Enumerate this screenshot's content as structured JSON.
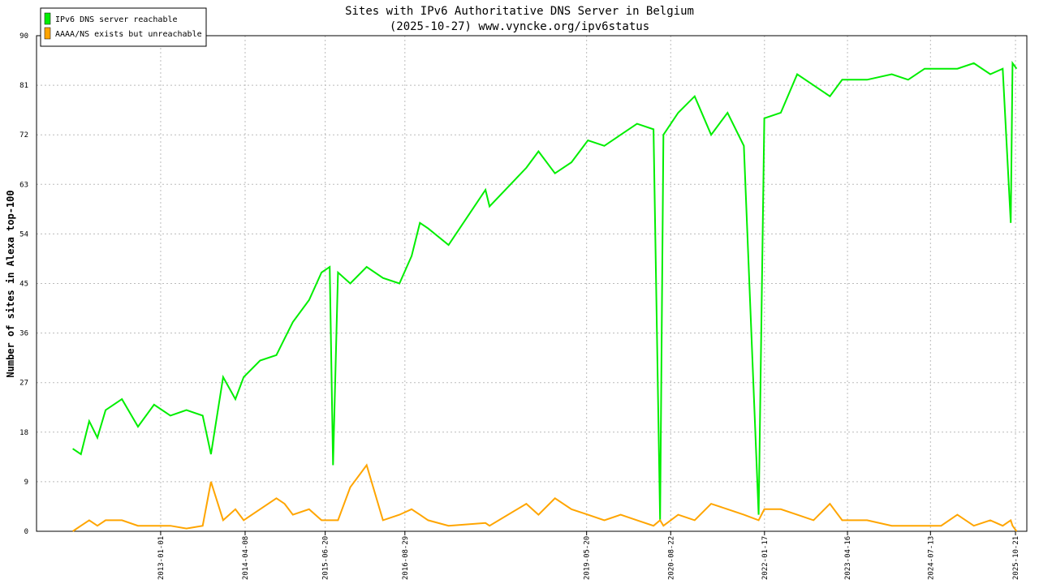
{
  "chart_data": {
    "type": "line",
    "title": "Sites with IPv6 Authoritative DNS Server in Belgium",
    "subtitle": "(2025-10-27) www.vyncke.org/ipv6status",
    "y_label": "Number of sites in Alexa top-100",
    "x": [
      "2011-09-08",
      "2011-10-23",
      "2011-12-07",
      "2012-01-21",
      "2012-03-06",
      "2012-06-03",
      "2012-08-30",
      "2012-11-26",
      "2013-02-23",
      "2013-05-22",
      "2013-08-19",
      "2013-10-03",
      "2013-12-09",
      "2014-02-14",
      "2014-03-31",
      "2014-06-29",
      "2014-09-26",
      "2014-11-10",
      "2014-12-25",
      "2015-03-24",
      "2015-05-31",
      "2015-07-15",
      "2015-08-02",
      "2015-08-29",
      "2015-11-04",
      "2016-02-02",
      "2016-05-01",
      "2016-07-30",
      "2016-10-05",
      "2016-11-19",
      "2017-01-03",
      "2017-04-25",
      "2017-11-13",
      "2017-12-05",
      "2018-06-24",
      "2018-08-30",
      "2018-11-28",
      "2019-02-26",
      "2019-05-27",
      "2019-08-25",
      "2019-11-22",
      "2020-02-20",
      "2020-05-20",
      "2020-06-25",
      "2020-07-13",
      "2020-10-02",
      "2020-12-31",
      "2021-03-31",
      "2021-06-29",
      "2021-09-26",
      "2021-12-16",
      "2022-01-16",
      "2022-04-16",
      "2022-07-15",
      "2022-10-12",
      "2023-01-10",
      "2023-03-18",
      "2023-08-01",
      "2023-12-14",
      "2024-03-13",
      "2024-06-11",
      "2024-09-09",
      "2024-12-07",
      "2025-03-07",
      "2025-06-05",
      "2025-08-12",
      "2025-09-25",
      "2025-10-05",
      "2025-10-27"
    ],
    "series": [
      {
        "name": "IPv6 DNS server reachable",
        "color": "#00ee00",
        "values": [
          15,
          14,
          20,
          17,
          22,
          24,
          19,
          23,
          21,
          22,
          21,
          14,
          28,
          24,
          28,
          31,
          32,
          35,
          38,
          42,
          47,
          48,
          12,
          47,
          45,
          48,
          46,
          45,
          50,
          56,
          55,
          52,
          62,
          59,
          66,
          69,
          65,
          67,
          71,
          70,
          72,
          74,
          73,
          2,
          72,
          76,
          79,
          72,
          76,
          70,
          3,
          75,
          76,
          83,
          81,
          79,
          82,
          82,
          83,
          82,
          84,
          84,
          84,
          85,
          83,
          84,
          56,
          85,
          84
        ]
      },
      {
        "name": "AAAA/NS exists but unreachable",
        "color": "#ffa500",
        "values": [
          0,
          1,
          2,
          1,
          2,
          2,
          1,
          1,
          1,
          0.5,
          1,
          9,
          2,
          4,
          2,
          4,
          6,
          5,
          3,
          4,
          2,
          2,
          2,
          2,
          8,
          12,
          2,
          3,
          4,
          3,
          2,
          1,
          1.5,
          1,
          5,
          3,
          6,
          4,
          3,
          2,
          3,
          2,
          1,
          2,
          1,
          3,
          2,
          5,
          4,
          3,
          2,
          4,
          4,
          3,
          2,
          5,
          2,
          2,
          1,
          1,
          1,
          1,
          3,
          1,
          2,
          1,
          2,
          1,
          0
        ]
      }
    ],
    "xlim": [
      "2011-02-22",
      "2025-12-22"
    ],
    "xticks": [
      "2013-01-01",
      "2014-04-08",
      "2015-06-20",
      "2016-08-29",
      "2019-05-20",
      "2020-08-22",
      "2022-01-17",
      "2023-04-16",
      "2024-07-13",
      "2025-10-21"
    ],
    "ylim": [
      0,
      90
    ],
    "yticks": [
      0,
      9,
      18,
      27,
      36,
      45,
      54,
      63,
      72,
      81,
      90
    ],
    "grid": true,
    "legend": "top-left"
  }
}
